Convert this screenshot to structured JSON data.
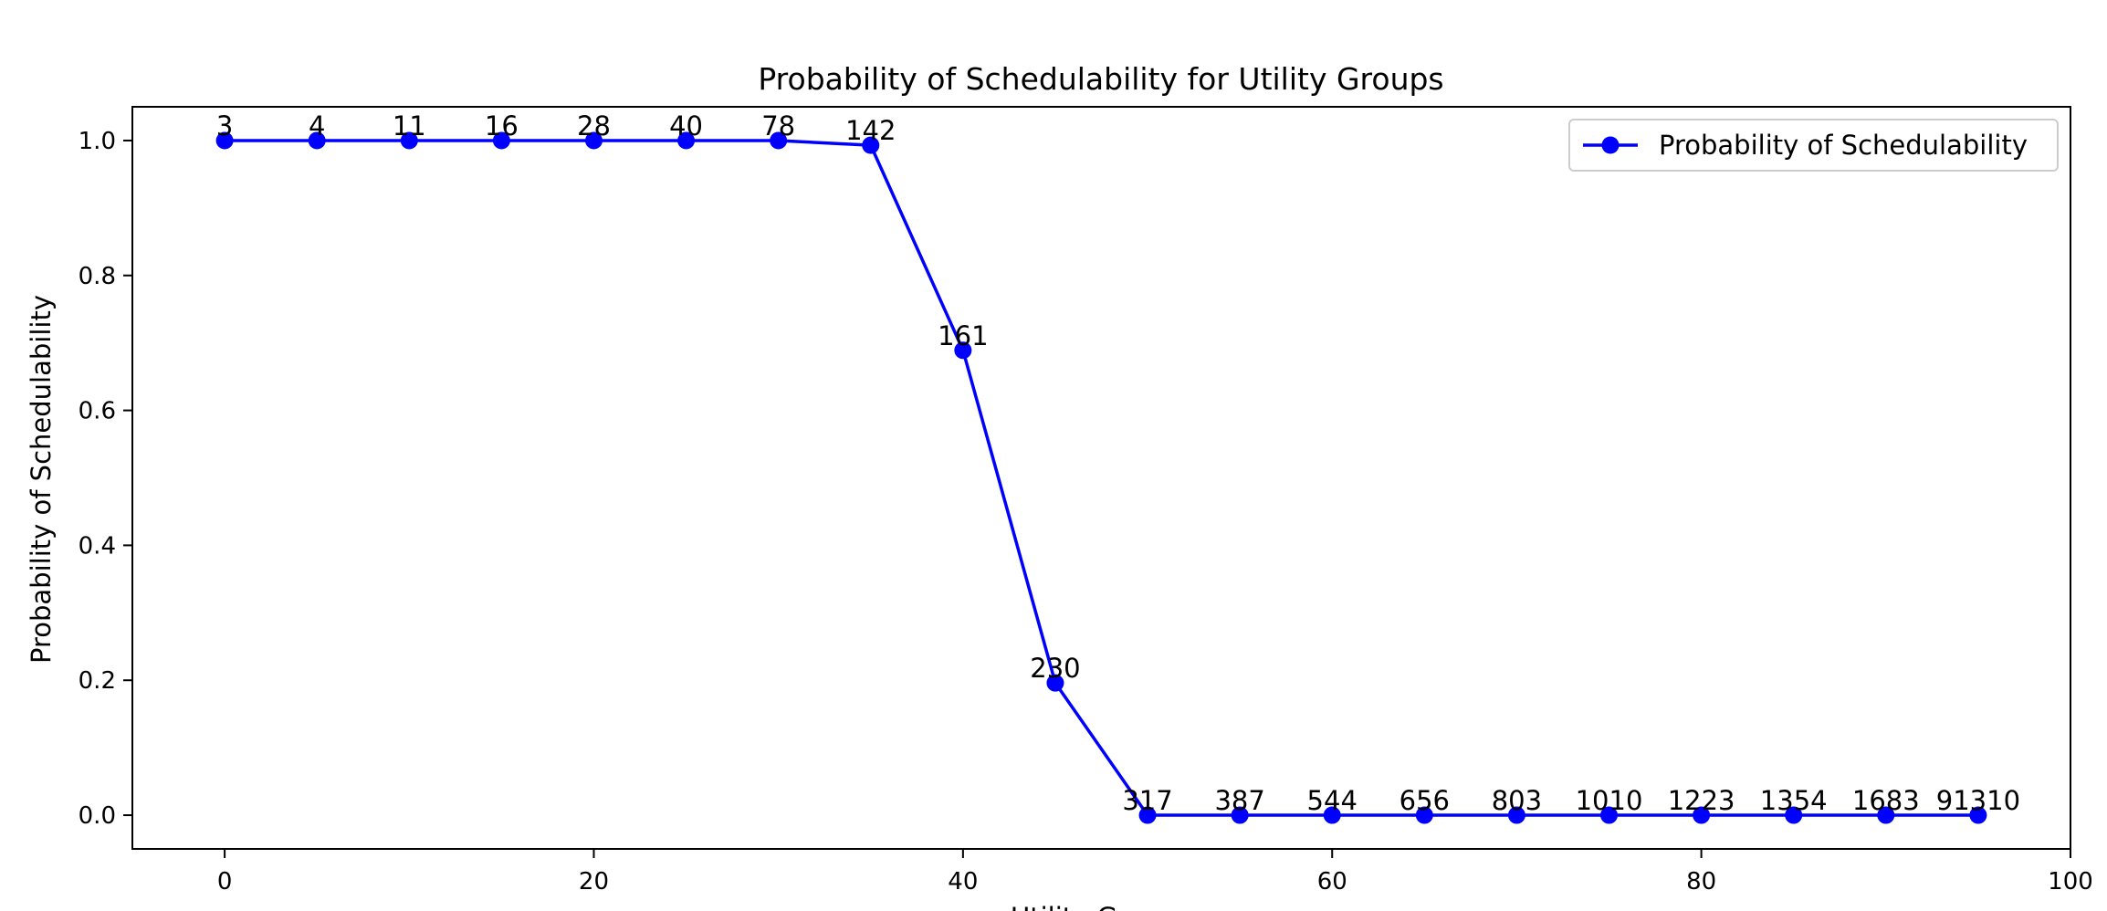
{
  "chart_data": {
    "type": "line",
    "title": "Probability of Schedulability for Utility Groups",
    "xlabel": "Utility Groups",
    "ylabel": "Probability of Schedulability",
    "xlim": [
      -5,
      100
    ],
    "ylim": [
      -0.05,
      1.05
    ],
    "xticks": [
      0,
      20,
      40,
      60,
      80,
      100
    ],
    "yticks": [
      0.0,
      0.2,
      0.4,
      0.6,
      0.8,
      1.0
    ],
    "xtick_labels": [
      "0",
      "20",
      "40",
      "60",
      "80",
      "100"
    ],
    "ytick_labels": [
      "0.0",
      "0.2",
      "0.4",
      "0.6",
      "0.8",
      "1.0"
    ],
    "grid": false,
    "legend_position": "top-right",
    "series": [
      {
        "name": "Probability of Schedulability",
        "color": "#0000ff",
        "marker": "circle",
        "x": [
          0,
          5,
          10,
          15,
          20,
          25,
          30,
          35,
          40,
          45,
          50,
          55,
          60,
          65,
          70,
          75,
          80,
          85,
          90,
          95
        ],
        "y": [
          1.0,
          1.0,
          1.0,
          1.0,
          1.0,
          1.0,
          1.0,
          0.993,
          0.689,
          0.196,
          0.0,
          0.0,
          0.0,
          0.0,
          0.0,
          0.0,
          0.0,
          0.0,
          0.0,
          0.0
        ],
        "labels": [
          "3",
          "4",
          "11",
          "16",
          "28",
          "40",
          "78",
          "142",
          "161",
          "230",
          "317",
          "387",
          "544",
          "656",
          "803",
          "1010",
          "1223",
          "1354",
          "1683",
          "91310"
        ]
      }
    ]
  }
}
